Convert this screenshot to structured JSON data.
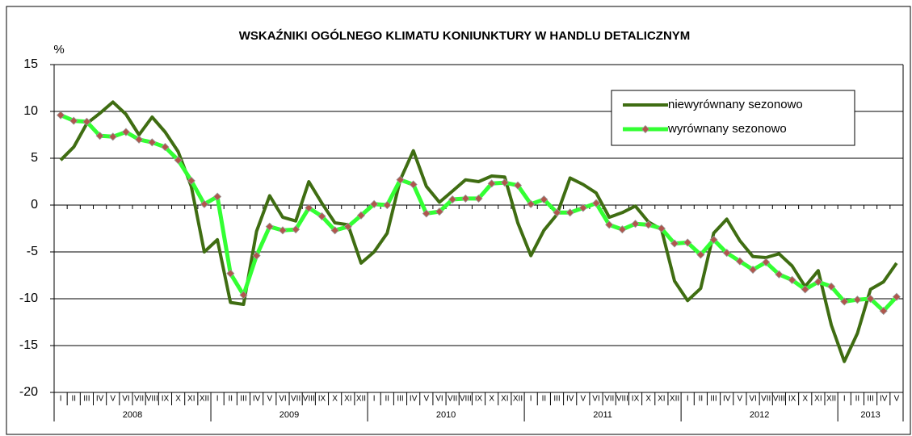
{
  "chart_data": {
    "type": "line",
    "title": "WSKAŹNIKI OGÓLNEGO KLIMATU KONIUNKTURY W HANDLU DETALICZNYM",
    "y_label": "%",
    "categories": [
      "I",
      "II",
      "III",
      "IV",
      "V",
      "VI",
      "VII",
      "VIII",
      "IX",
      "X",
      "XI",
      "XII",
      "I",
      "II",
      "III",
      "IV",
      "V",
      "VI",
      "VII",
      "VIII",
      "IX",
      "X",
      "XI",
      "XII",
      "I",
      "II",
      "III",
      "IV",
      "V",
      "VI",
      "VII",
      "VIII",
      "IX",
      "X",
      "XI",
      "XII",
      "I",
      "II",
      "III",
      "IV",
      "V",
      "VI",
      "VII",
      "VIII",
      "IX",
      "X",
      "XI",
      "XII",
      "I",
      "II",
      "III",
      "IV",
      "V",
      "VI",
      "VII",
      "VIII",
      "IX",
      "X",
      "XI",
      "XII",
      "I",
      "II",
      "III",
      "IV",
      "V"
    ],
    "years": [
      "2008",
      "2009",
      "2010",
      "2011",
      "2012",
      "2013"
    ],
    "series": [
      {
        "name": "niewyrównany sezonowo",
        "color": "#3f6d12",
        "marker": false,
        "values": [
          4.8,
          6.2,
          8.7,
          9.8,
          11.0,
          9.7,
          7.5,
          9.4,
          7.8,
          5.7,
          2.0,
          -5.0,
          -3.7,
          -10.4,
          -10.6,
          -2.8,
          1.0,
          -1.3,
          -1.7,
          2.5,
          0.2,
          -1.9,
          -2.1,
          -6.2,
          -5.0,
          -3.0,
          2.7,
          5.8,
          2.0,
          0.3,
          1.5,
          2.7,
          2.5,
          3.1,
          3.0,
          -1.9,
          -5.4,
          -2.7,
          -1.0,
          2.9,
          2.2,
          1.3,
          -1.3,
          -0.8,
          -0.1,
          -1.8,
          -2.6,
          -8.1,
          -10.2,
          -8.9,
          -3.0,
          -1.5,
          -3.8,
          -5.5,
          -5.6,
          -5.2,
          -6.5,
          -8.7,
          -7.0,
          -12.8,
          -16.7,
          -13.7,
          -9.0,
          -8.2,
          -6.2
        ]
      },
      {
        "name": "wyrównany sezonowo",
        "color": "#33ff33",
        "marker": true,
        "marker_color": "#b0564c",
        "values": [
          9.6,
          9.0,
          8.9,
          7.4,
          7.3,
          7.8,
          7.0,
          6.7,
          6.2,
          4.8,
          2.6,
          0.1,
          0.9,
          -7.3,
          -9.6,
          -5.4,
          -2.3,
          -2.7,
          -2.6,
          -0.3,
          -1.2,
          -2.7,
          -2.3,
          -1.1,
          0.1,
          0.0,
          2.7,
          2.2,
          -0.9,
          -0.7,
          0.6,
          0.7,
          0.7,
          2.3,
          2.4,
          2.1,
          0.1,
          0.6,
          -0.8,
          -0.8,
          -0.3,
          0.2,
          -2.1,
          -2.6,
          -2.0,
          -2.1,
          -2.5,
          -4.1,
          -4.0,
          -5.3,
          -3.7,
          -5.1,
          -6.0,
          -6.9,
          -6.1,
          -7.4,
          -8.0,
          -9.0,
          -8.2,
          -8.7,
          -10.3,
          -10.1,
          -10.0,
          -11.3,
          -9.8
        ]
      }
    ],
    "ylim": [
      -20,
      15
    ],
    "yticks": [
      15,
      10,
      5,
      0,
      -5,
      -10,
      -15,
      -20
    ],
    "grid": true,
    "legend": "upper right"
  }
}
